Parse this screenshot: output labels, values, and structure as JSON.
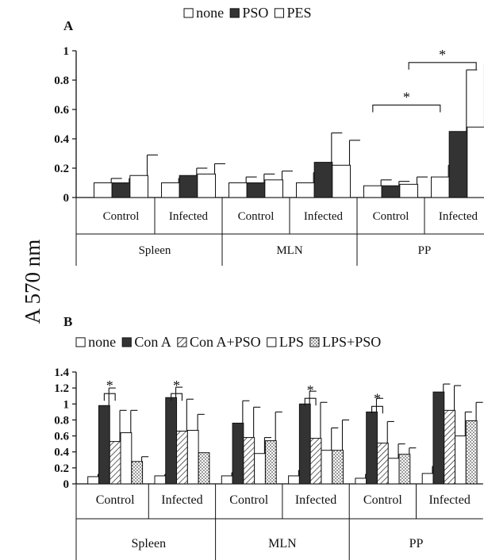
{
  "colors": {
    "ink": "#111111",
    "paper": "#ffffff"
  },
  "y_axis_label": "A 570 nm",
  "chart_data": [
    {
      "panel": "A",
      "type": "bar",
      "legend": {
        "placement": "top",
        "entries": [
          {
            "label": "none",
            "swatch": "open"
          },
          {
            "label": "PSO",
            "swatch": "solid"
          },
          {
            "label": "PES",
            "swatch": "open"
          }
        ]
      },
      "ylim": [
        0,
        1
      ],
      "yticks": [
        0,
        0.2,
        0.4,
        0.6,
        0.8,
        1
      ],
      "ytick_labels": [
        "0",
        "0.2",
        "0.4",
        "0.6",
        "0.8",
        "1"
      ],
      "groups": [
        {
          "tissue": "Spleen",
          "subgroups": [
            "Control",
            "Infected"
          ]
        },
        {
          "tissue": "MLN",
          "subgroups": [
            "Control",
            "Infected"
          ]
        },
        {
          "tissue": "PP",
          "subgroups": [
            "Control",
            "Infected"
          ]
        }
      ],
      "categories": [
        "Spleen Control",
        "Spleen Infected",
        "MLN Control",
        "MLN Infected",
        "PP Control",
        "PP Infected"
      ],
      "series": [
        {
          "name": "none",
          "fill": "open",
          "values": [
            0.1,
            0.1,
            0.1,
            0.1,
            0.08,
            0.14
          ],
          "errors": [
            0.03,
            0.03,
            0.04,
            0.07,
            0.04,
            0.08
          ]
        },
        {
          "name": "PSO",
          "fill": "solid",
          "values": [
            0.1,
            0.15,
            0.1,
            0.24,
            0.08,
            0.45
          ],
          "errors": [
            0.03,
            0.05,
            0.06,
            0.2,
            0.03,
            0.42
          ]
        },
        {
          "name": "PES",
          "fill": "open",
          "values": [
            0.15,
            0.16,
            0.12,
            0.22,
            0.09,
            0.48
          ],
          "errors": [
            0.14,
            0.07,
            0.06,
            0.17,
            0.05,
            0.43
          ]
        }
      ],
      "significance": [
        {
          "label": "*",
          "from": {
            "category": "PP Control",
            "series": "none"
          },
          "to": {
            "category": "PP Infected",
            "series": "none"
          },
          "at": 0.63
        },
        {
          "label": "*",
          "from": {
            "category": "PP Control",
            "series": "PES"
          },
          "to": {
            "category": "PP Infected",
            "series": "PES"
          },
          "at": 0.92
        }
      ]
    },
    {
      "panel": "B",
      "type": "bar",
      "legend": {
        "placement": "top",
        "entries": [
          {
            "label": "none",
            "swatch": "open"
          },
          {
            "label": "Con A",
            "swatch": "solid"
          },
          {
            "label": "Con A+PSO",
            "swatch": "hatch"
          },
          {
            "label": "LPS",
            "swatch": "open"
          },
          {
            "label": "LPS+PSO",
            "swatch": "dots"
          }
        ]
      },
      "ylim": [
        0,
        1.4
      ],
      "yticks": [
        0,
        0.2,
        0.4,
        0.6,
        0.8,
        1,
        1.2,
        1.4
      ],
      "ytick_labels": [
        "0",
        "0.2",
        "0.4",
        "0.6",
        "0.8",
        "1",
        "1.2",
        "1.4"
      ],
      "groups": [
        {
          "tissue": "Spleen",
          "subgroups": [
            "Control",
            "Infected"
          ]
        },
        {
          "tissue": "MLN",
          "subgroups": [
            "Control",
            "Infected"
          ]
        },
        {
          "tissue": "PP",
          "subgroups": [
            "Control",
            "Infected"
          ]
        }
      ],
      "categories": [
        "Spleen Control",
        "Spleen Infected",
        "MLN Control",
        "MLN Infected",
        "PP Control",
        "PP Infected"
      ],
      "series": [
        {
          "name": "none",
          "fill": "open",
          "values": [
            0.09,
            0.1,
            0.1,
            0.1,
            0.07,
            0.13
          ],
          "errors": [
            0.03,
            0.02,
            0.04,
            0.07,
            0.05,
            0.09
          ]
        },
        {
          "name": "Con A",
          "fill": "solid",
          "values": [
            0.98,
            1.08,
            0.76,
            1.0,
            0.9,
            1.15
          ],
          "errors": [
            0.22,
            0.13,
            0.28,
            0.16,
            0.17,
            0.1
          ]
        },
        {
          "name": "Con A+PSO",
          "fill": "hatch",
          "values": [
            0.53,
            0.66,
            0.58,
            0.57,
            0.51,
            0.92
          ],
          "errors": [
            0.39,
            0.4,
            0.38,
            0.45,
            0.27,
            0.31
          ]
        },
        {
          "name": "LPS",
          "fill": "open",
          "values": [
            0.64,
            0.67,
            0.38,
            0.42,
            0.32,
            0.6
          ],
          "errors": [
            0.28,
            0.2,
            0.2,
            0.28,
            0.18,
            0.3
          ]
        },
        {
          "name": "LPS+PSO",
          "fill": "dots",
          "values": [
            0.28,
            0.39,
            0.54,
            0.42,
            0.37,
            0.79
          ],
          "errors": [
            0.06,
            0.0,
            0.36,
            0.38,
            0.08,
            0.23
          ]
        }
      ],
      "significance": [
        {
          "label": "*",
          "category": "Spleen Control",
          "from": "Con A",
          "to": "Con A+PSO",
          "at": 1.13
        },
        {
          "label": "*",
          "category": "Spleen Infected",
          "from": "Con A",
          "to": "Con A+PSO",
          "at": 1.13
        },
        {
          "label": "*",
          "category": "MLN Infected",
          "from": "Con A",
          "to": "Con A+PSO",
          "at": 1.07
        },
        {
          "label": "*",
          "category": "PP Control",
          "from": "Con A",
          "to": "Con A+PSO",
          "at": 0.97
        }
      ]
    }
  ]
}
